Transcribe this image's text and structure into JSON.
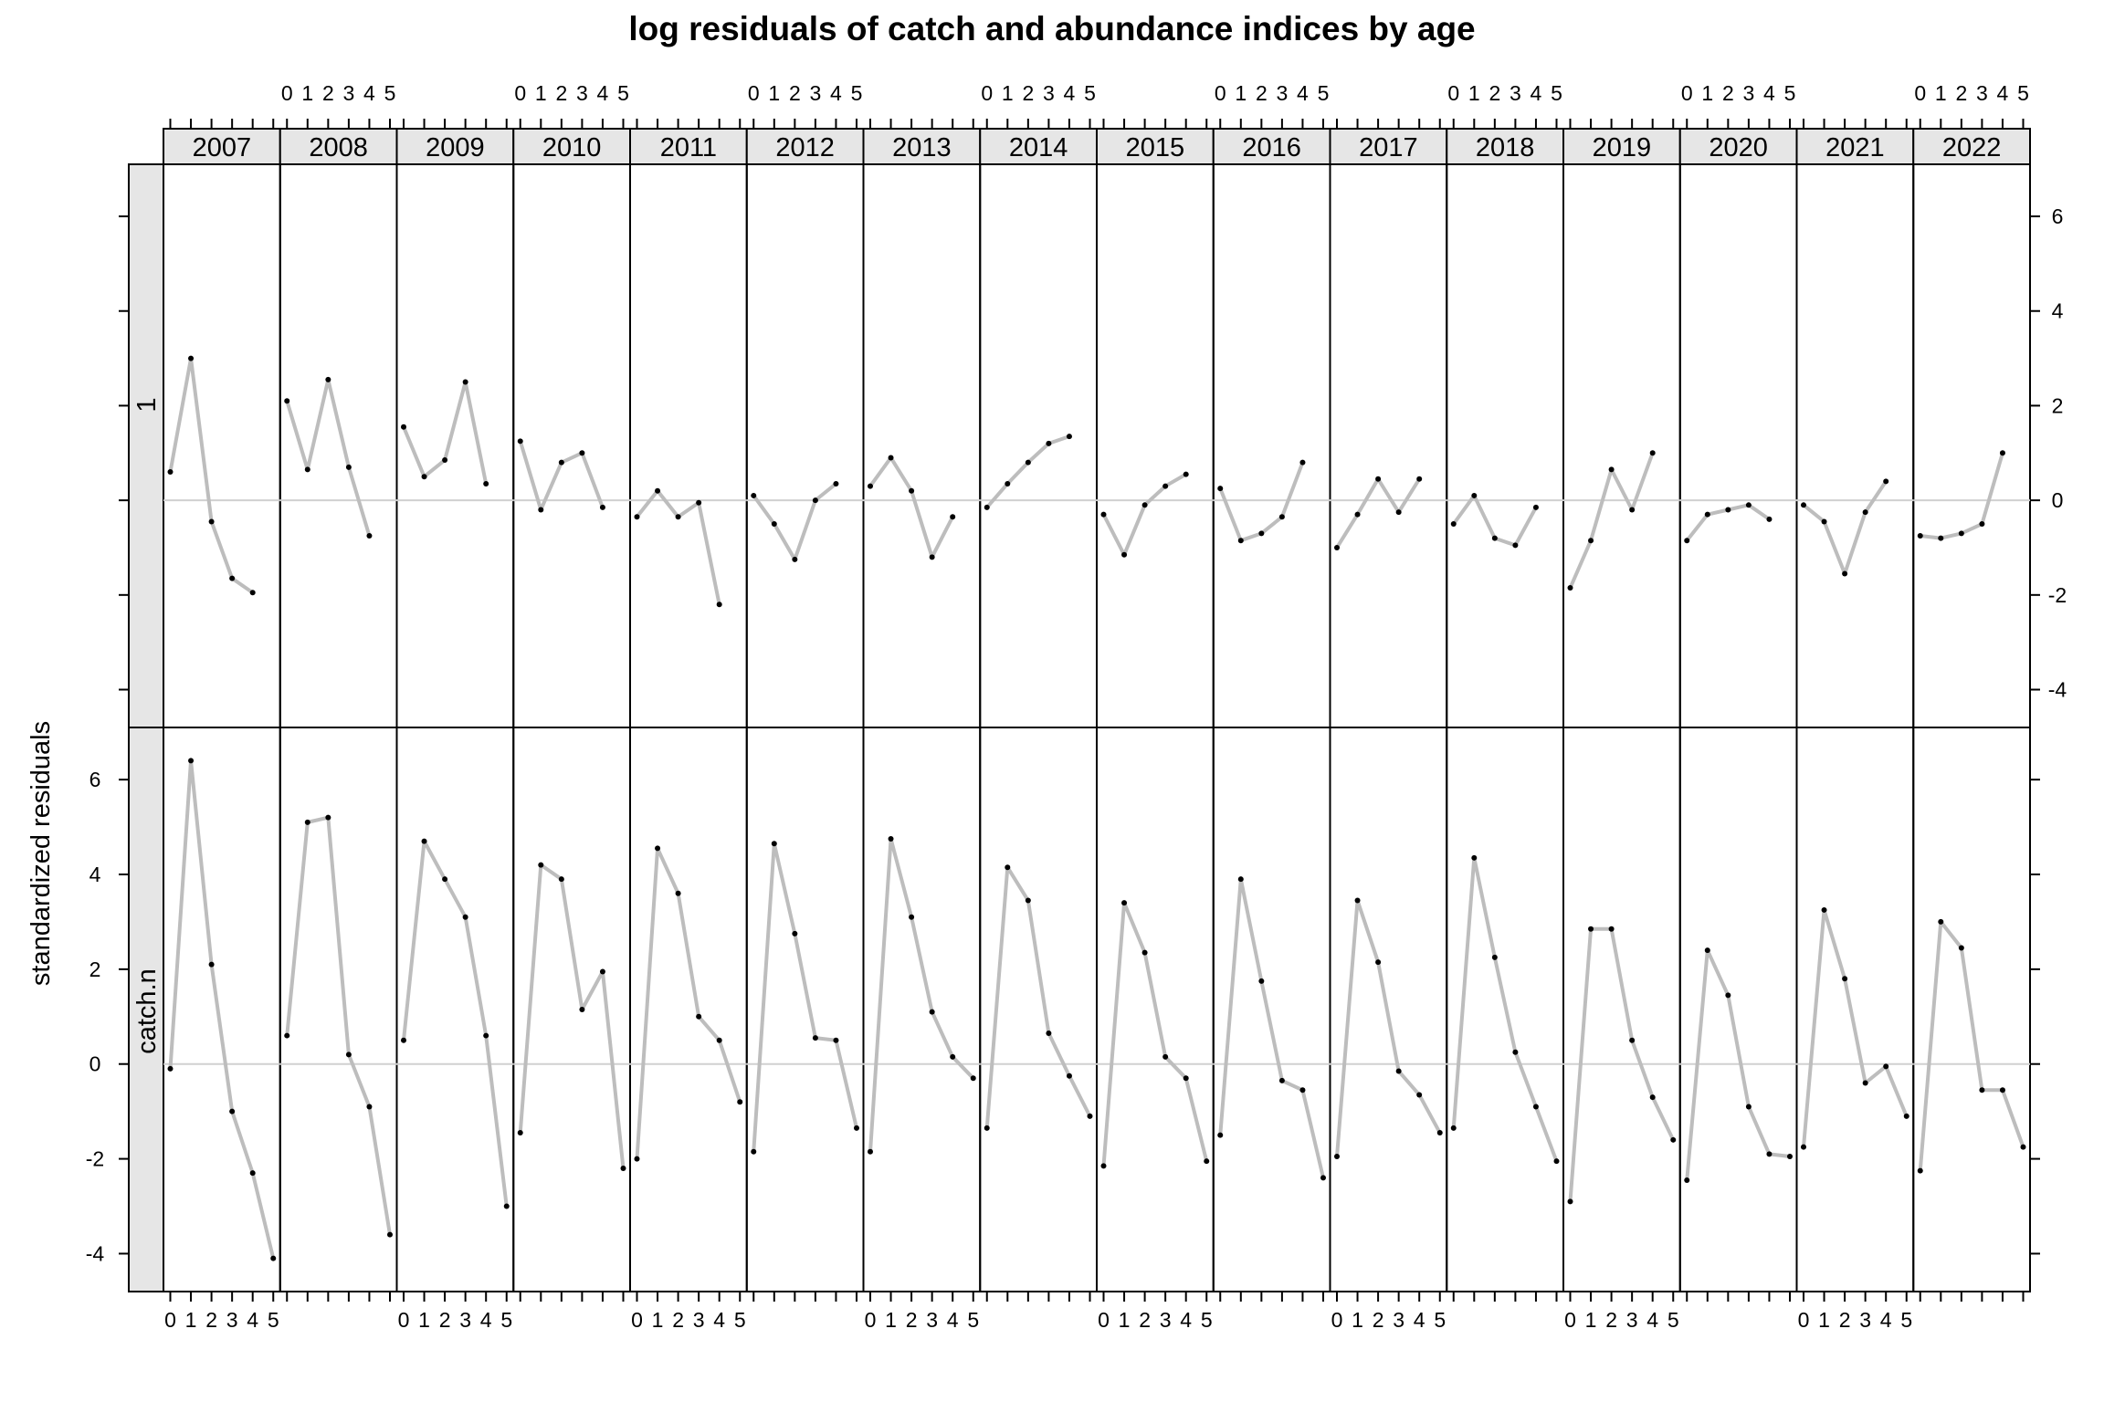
{
  "chart_data": {
    "type": "line",
    "title": "log residuals of catch and abundance indices by age",
    "xlabel": "",
    "ylabel": "standardized residuals",
    "ylim": [
      -4.8,
      7.1
    ],
    "yticks": [
      -4,
      -2,
      0,
      2,
      4,
      6
    ],
    "ytick_labels": [
      "-4",
      "-2",
      "0",
      "2",
      "4",
      "6"
    ],
    "ages": [
      0,
      1,
      2,
      3,
      4,
      5
    ],
    "age_tick_labels": [
      "0",
      "1",
      "2",
      "3",
      "4",
      "5"
    ],
    "years": [
      "2007",
      "2008",
      "2009",
      "2010",
      "2011",
      "2012",
      "2013",
      "2014",
      "2015",
      "2016",
      "2017",
      "2018",
      "2019",
      "2020",
      "2021",
      "2022"
    ],
    "grid": false,
    "reference_line": 0,
    "colors": {
      "line": "#bdbdbd",
      "point": "#000000",
      "strip_bg": "#e6e6e6",
      "ref_line": "#d0d0d0",
      "frame": "#000000"
    },
    "rows": [
      {
        "label": "1",
        "series": [
          [
            0.6,
            3.0,
            -0.45,
            -1.65,
            -1.95
          ],
          [
            2.1,
            0.65,
            2.55,
            0.7,
            -0.75
          ],
          [
            1.55,
            0.5,
            0.85,
            2.5,
            0.35
          ],
          [
            1.25,
            -0.2,
            0.8,
            1.0,
            -0.15
          ],
          [
            -0.35,
            0.2,
            -0.35,
            -0.05,
            -2.2
          ],
          [
            0.1,
            -0.5,
            -1.25,
            0.0,
            0.35
          ],
          [
            0.3,
            0.9,
            0.2,
            -1.2,
            -0.35
          ],
          [
            -0.15,
            0.35,
            0.8,
            1.2,
            1.35
          ],
          [
            -0.3,
            -1.15,
            -0.1,
            0.3,
            0.55
          ],
          [
            0.25,
            -0.85,
            -0.7,
            -0.35,
            0.8
          ],
          [
            -1.0,
            -0.3,
            0.45,
            -0.25,
            0.45
          ],
          [
            -0.5,
            0.1,
            -0.8,
            -0.95,
            -0.15
          ],
          [
            -1.85,
            -0.85,
            0.65,
            -0.2,
            1.0
          ],
          [
            -0.85,
            -0.3,
            -0.2,
            -0.1,
            -0.4
          ],
          [
            -0.1,
            -0.45,
            -1.55,
            -0.25,
            0.4
          ],
          [
            -0.75,
            -0.8,
            -0.7,
            -0.5,
            1.0
          ]
        ]
      },
      {
        "label": "catch.n",
        "series": [
          [
            -0.1,
            6.4,
            2.1,
            -1.0,
            -2.3,
            -4.1
          ],
          [
            0.6,
            5.1,
            5.2,
            0.2,
            -0.9,
            -3.6
          ],
          [
            0.5,
            4.7,
            3.9,
            3.1,
            0.6,
            -3.0
          ],
          [
            -1.45,
            4.2,
            3.9,
            1.15,
            1.95,
            -2.2
          ],
          [
            -2.0,
            4.55,
            3.6,
            1.0,
            0.5,
            -0.8
          ],
          [
            -1.85,
            4.65,
            2.75,
            0.55,
            0.5,
            -1.35
          ],
          [
            -1.85,
            4.75,
            3.1,
            1.1,
            0.15,
            -0.3
          ],
          [
            -1.35,
            4.15,
            3.45,
            0.65,
            -0.25,
            -1.1
          ],
          [
            -2.15,
            3.4,
            2.35,
            0.15,
            -0.3,
            -2.05
          ],
          [
            -1.5,
            3.9,
            1.75,
            -0.35,
            -0.55,
            -2.4
          ],
          [
            -1.95,
            3.45,
            2.15,
            -0.15,
            -0.65,
            -1.45
          ],
          [
            -1.35,
            4.35,
            2.25,
            0.25,
            -0.9,
            -2.05
          ],
          [
            -2.9,
            2.85,
            2.85,
            0.5,
            -0.7,
            -1.6
          ],
          [
            -2.45,
            2.4,
            1.45,
            -0.9,
            -1.9,
            -1.95
          ],
          [
            -1.75,
            3.25,
            1.8,
            -0.4,
            -0.05,
            -1.1
          ],
          [
            -2.25,
            3.0,
            2.45,
            -0.55,
            -0.55,
            -1.75
          ]
        ]
      }
    ]
  }
}
